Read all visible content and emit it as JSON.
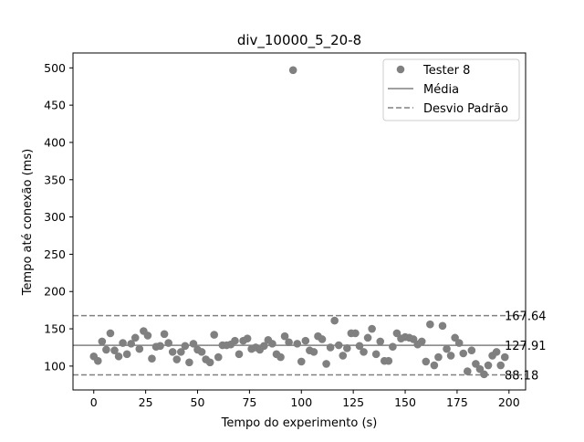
{
  "chart_data": {
    "type": "scatter",
    "title": "div_10000_5_20-8",
    "xlabel": "Tempo do experimento (s)",
    "ylabel": "Tempo até conexão (ms)",
    "xlim": [
      -10,
      208
    ],
    "ylim": [
      68,
      520
    ],
    "x_ticks": [
      0,
      25,
      50,
      75,
      100,
      125,
      150,
      175,
      200
    ],
    "y_ticks": [
      100,
      150,
      200,
      250,
      300,
      350,
      400,
      450,
      500
    ],
    "grid": false,
    "legend_position": "top-right",
    "colors": {
      "points": "#808080",
      "mean": "#808080",
      "std": "#808080",
      "axes": "#000000"
    },
    "legend": {
      "points": "Tester 8",
      "mean": "Média",
      "std": "Desvio Padrão"
    },
    "reference_lines": {
      "mean": {
        "value": 127.91,
        "label": "127.91"
      },
      "upper": {
        "value": 167.64,
        "label": "167.64"
      },
      "lower": {
        "value": 88.18,
        "label": "88.18"
      }
    },
    "series": [
      {
        "name": "Tester 8",
        "points": [
          [
            0,
            113
          ],
          [
            2,
            107
          ],
          [
            4,
            133
          ],
          [
            6,
            122
          ],
          [
            8,
            144
          ],
          [
            10,
            121
          ],
          [
            12,
            113
          ],
          [
            14,
            131
          ],
          [
            16,
            116
          ],
          [
            18,
            130
          ],
          [
            20,
            138
          ],
          [
            22,
            123
          ],
          [
            24,
            147
          ],
          [
            26,
            141
          ],
          [
            28,
            110
          ],
          [
            30,
            126
          ],
          [
            32,
            127
          ],
          [
            34,
            143
          ],
          [
            36,
            131
          ],
          [
            38,
            119
          ],
          [
            40,
            109
          ],
          [
            42,
            119
          ],
          [
            44,
            127
          ],
          [
            46,
            105
          ],
          [
            48,
            130
          ],
          [
            50,
            122
          ],
          [
            52,
            119
          ],
          [
            54,
            109
          ],
          [
            56,
            105
          ],
          [
            58,
            142
          ],
          [
            60,
            112
          ],
          [
            62,
            128
          ],
          [
            64,
            128
          ],
          [
            66,
            129
          ],
          [
            68,
            134
          ],
          [
            70,
            116
          ],
          [
            72,
            134
          ],
          [
            74,
            137
          ],
          [
            76,
            123
          ],
          [
            78,
            125
          ],
          [
            80,
            122
          ],
          [
            82,
            127
          ],
          [
            84,
            135
          ],
          [
            86,
            130
          ],
          [
            88,
            116
          ],
          [
            90,
            112
          ],
          [
            92,
            140
          ],
          [
            94,
            132
          ],
          [
            96,
            497
          ],
          [
            98,
            130
          ],
          [
            100,
            106
          ],
          [
            102,
            134
          ],
          [
            104,
            121
          ],
          [
            106,
            119
          ],
          [
            108,
            140
          ],
          [
            110,
            136
          ],
          [
            112,
            103
          ],
          [
            114,
            125
          ],
          [
            116,
            161
          ],
          [
            118,
            128
          ],
          [
            120,
            114
          ],
          [
            122,
            124
          ],
          [
            124,
            144
          ],
          [
            126,
            144
          ],
          [
            128,
            127
          ],
          [
            130,
            119
          ],
          [
            132,
            138
          ],
          [
            134,
            150
          ],
          [
            136,
            116
          ],
          [
            138,
            133
          ],
          [
            140,
            107
          ],
          [
            142,
            107
          ],
          [
            144,
            126
          ],
          [
            146,
            144
          ],
          [
            148,
            137
          ],
          [
            150,
            139
          ],
          [
            152,
            138
          ],
          [
            154,
            136
          ],
          [
            156,
            129
          ],
          [
            158,
            133
          ],
          [
            160,
            106
          ],
          [
            162,
            156
          ],
          [
            164,
            101
          ],
          [
            166,
            112
          ],
          [
            168,
            154
          ],
          [
            170,
            123
          ],
          [
            172,
            114
          ],
          [
            174,
            138
          ],
          [
            176,
            131
          ],
          [
            178,
            117
          ],
          [
            180,
            93
          ],
          [
            182,
            121
          ],
          [
            184,
            103
          ],
          [
            186,
            96
          ],
          [
            188,
            89
          ],
          [
            190,
            101
          ],
          [
            192,
            114
          ],
          [
            194,
            119
          ],
          [
            196,
            101
          ],
          [
            198,
            112
          ]
        ]
      }
    ]
  }
}
